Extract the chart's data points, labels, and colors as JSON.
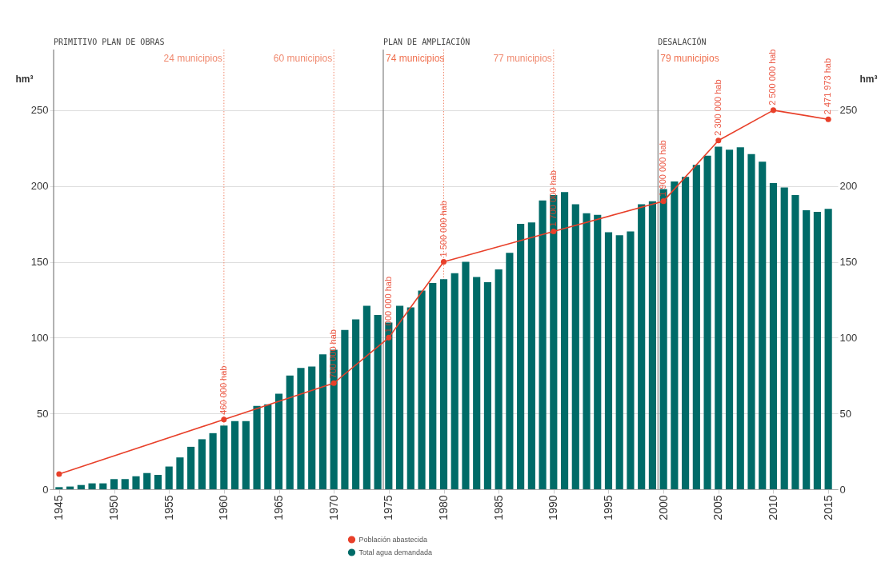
{
  "chart_data": {
    "type": "bar",
    "x": [
      1945,
      1946,
      1947,
      1948,
      1949,
      1950,
      1951,
      1952,
      1953,
      1954,
      1955,
      1956,
      1957,
      1958,
      1959,
      1960,
      1961,
      1962,
      1963,
      1964,
      1965,
      1966,
      1967,
      1968,
      1969,
      1970,
      1971,
      1972,
      1973,
      1974,
      1975,
      1976,
      1977,
      1978,
      1979,
      1980,
      1981,
      1982,
      1983,
      1984,
      1985,
      1986,
      1987,
      1988,
      1989,
      1990,
      1991,
      1992,
      1993,
      1994,
      1995,
      1996,
      1997,
      1998,
      1999,
      2000,
      2001,
      2002,
      2003,
      2004,
      2005,
      2006,
      2007,
      2008,
      2009,
      2010,
      2011,
      2012,
      2013,
      2014,
      2015
    ],
    "series": [
      {
        "name": "Población abastecida",
        "type": "line",
        "axis": "y2",
        "color": "#e8402a",
        "x": [
          1945,
          1960,
          1970,
          1975,
          1980,
          1990,
          2000,
          2005,
          2010,
          2015
        ],
        "values": [
          10,
          46,
          70,
          100,
          150,
          170,
          190,
          230,
          250,
          244
        ]
      },
      {
        "name": "Total agua demandada",
        "color": "#006b68",
        "values": [
          1.4,
          1.8,
          2.8,
          3.9,
          3.9,
          6.7,
          6.7,
          8.6,
          10.7,
          9.5,
          15,
          21,
          28,
          33,
          37,
          42,
          45,
          45,
          55,
          56,
          63,
          75,
          80,
          81,
          89,
          92,
          105,
          112,
          121,
          115,
          110,
          121,
          120,
          131,
          136,
          138.5,
          142.5,
          150,
          140,
          136.5,
          145,
          156,
          175,
          176,
          190.5,
          194,
          196,
          188,
          182,
          181,
          169.5,
          167.5,
          170,
          188,
          190,
          198,
          203,
          206,
          214,
          220,
          226,
          224,
          225.5,
          221,
          216,
          202,
          199,
          194,
          184,
          183,
          185
        ]
      }
    ],
    "ylabel": "hm³",
    "y2label": "hm³",
    "xlim": [
      1944.5,
      2015.5
    ],
    "xticks": [
      1945,
      1950,
      1955,
      1960,
      1965,
      1970,
      1975,
      1980,
      1985,
      1990,
      1995,
      2000,
      2005,
      2010,
      2015
    ],
    "ylim": [
      0,
      290
    ],
    "yticks": [
      0,
      50,
      100,
      150,
      200,
      250
    ],
    "y2lim": [
      0,
      290
    ],
    "y2ticks": [
      0,
      50,
      100,
      150,
      200,
      250
    ],
    "ref_lines": [
      {
        "axis": "x",
        "value": 1944.5,
        "label": "PRIMITIVO PLAN DE OBRAS",
        "color": "#7f7f7f",
        "line_style": "solid"
      },
      {
        "axis": "x",
        "value": 1974.5,
        "label": "PLAN DE AMPLIACIÓN",
        "color": "#7f7f7f",
        "line_style": "solid"
      },
      {
        "axis": "x",
        "value": 1999.5,
        "label": "DESALACIÓN",
        "color": "#7f7f7f",
        "line_style": "solid"
      },
      {
        "axis": "x",
        "value": 1960,
        "label": "24 municipios",
        "color": "#f08a70",
        "line_style": "dotted"
      },
      {
        "axis": "x",
        "value": 1970,
        "label": "60 municipios",
        "color": "#f08a70",
        "line_style": "dotted"
      },
      {
        "axis": "x",
        "value": 1980,
        "label": null,
        "color": "#f08a70",
        "line_style": "dotted"
      },
      {
        "axis": "x",
        "value": 1990,
        "label": "77 municipios",
        "color": "#f08a70",
        "line_style": "dotted"
      }
    ],
    "annotations": [
      {
        "text": "74 municipios",
        "x": 1974.5
      },
      {
        "text": "79 municipios",
        "x": 1999.5
      },
      {
        "text": "460 000 hab",
        "x": 1960,
        "y": 46
      },
      {
        "text": "700 000 hab",
        "x": 1970,
        "y": 70
      },
      {
        "text": "1 000 000 hab",
        "x": 1975,
        "y": 100
      },
      {
        "text": "1 500 000 hab",
        "x": 1980,
        "y": 150
      },
      {
        "text": "1 700 000 hab",
        "x": 1990,
        "y": 170
      },
      {
        "text": "1 900 000 hab",
        "x": 2000,
        "y": 190
      },
      {
        "text": "2 300 000 hab",
        "x": 2005,
        "y": 230
      },
      {
        "text": "2 500 000 hab",
        "x": 2010,
        "y": 250
      },
      {
        "text": "2 471 973 hab",
        "x": 2015,
        "y": 244
      }
    ],
    "grid": "y",
    "legend": "bottom",
    "marker": "circle"
  }
}
